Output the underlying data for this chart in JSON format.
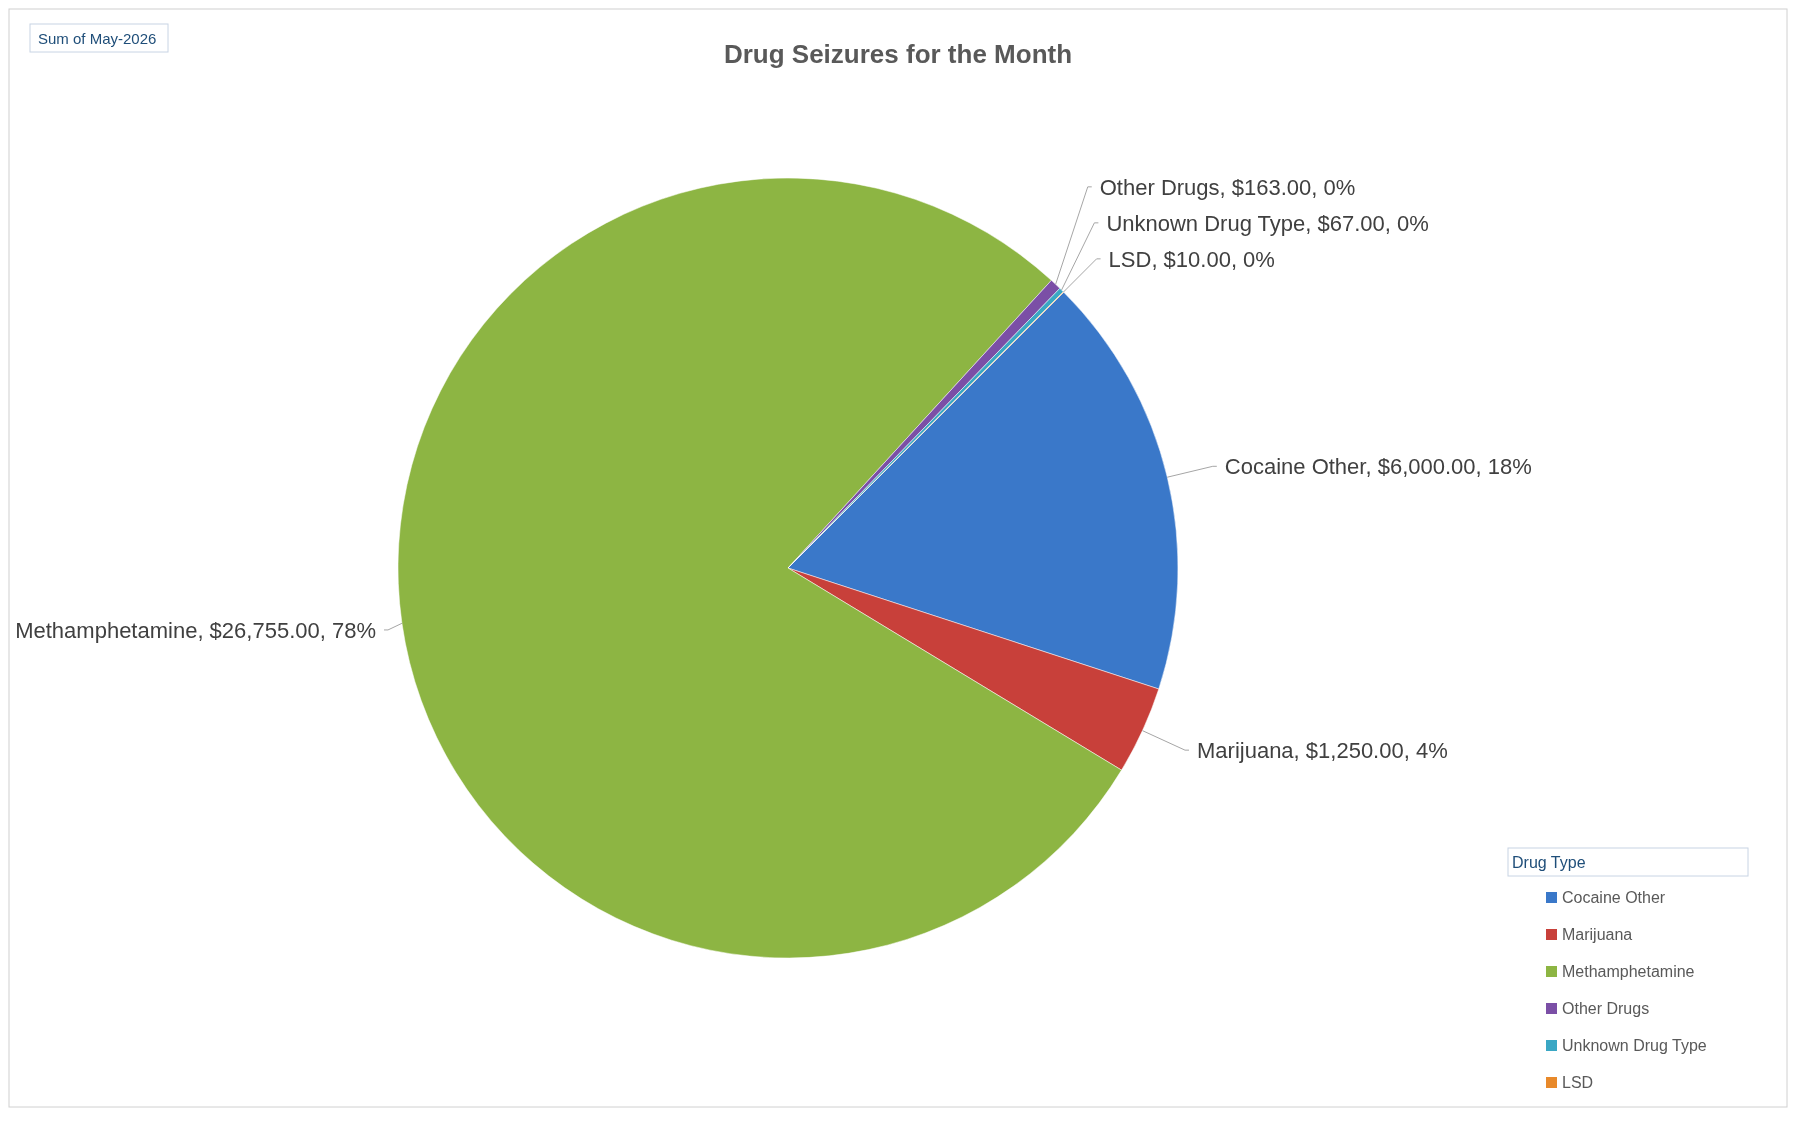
{
  "chart_data": {
    "type": "pie",
    "title": "Drug Seizures for the Month",
    "categories": [
      "Cocaine Other",
      "Marijuana",
      "Methamphetamine",
      "Other Drugs",
      "Unknown Drug Type",
      "LSD"
    ],
    "values": [
      6000,
      1250,
      26755,
      163,
      67,
      10
    ],
    "colors": [
      "#3a78c9",
      "#c8403a",
      "#8db543",
      "#7b4fa6",
      "#3aa7c4",
      "#e8892a"
    ],
    "value_labels": [
      "Cocaine Other, $6,000.00, 18%",
      "Marijuana, $1,250.00, 4%",
      "Methamphetamine, $26,755.00, 78%",
      "Other Drugs, $163.00, 0%",
      "Unknown Drug Type, $67.00, 0%",
      "LSD, $10.00, 0%"
    ],
    "legend_title": "Drug Type",
    "legend": "bottom right",
    "annotations": [
      "Sum of May-2026"
    ]
  }
}
